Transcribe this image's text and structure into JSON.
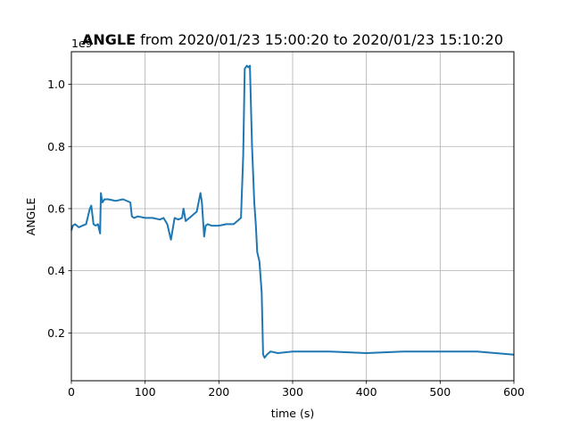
{
  "chart_data": {
    "type": "line",
    "title_bold": "ANGLE",
    "title_rest": " from 2020/01/23 15:00:20 to 2020/01/23 15:10:20",
    "xlabel": "time (s)",
    "ylabel": "ANGLE",
    "y_offset_text": "1e9",
    "xlim": [
      0,
      600
    ],
    "ylim": [
      0.046,
      1.105
    ],
    "x_ticks": [
      0,
      100,
      200,
      300,
      400,
      500,
      600
    ],
    "x_tick_labels": [
      "0",
      "100",
      "200",
      "300",
      "400",
      "500",
      "600"
    ],
    "y_ticks": [
      0.2,
      0.4,
      0.6,
      0.8,
      1.0
    ],
    "y_tick_labels": [
      "0.2",
      "0.4",
      "0.6",
      "0.8",
      "1.0"
    ],
    "grid": true,
    "line_color": "#1f77b4",
    "series": [
      {
        "x": [
          0,
          2,
          5,
          10,
          15,
          20,
          25,
          27,
          30,
          33,
          36,
          39,
          40,
          42,
          45,
          50,
          60,
          70,
          80,
          82,
          85,
          90,
          100,
          110,
          120,
          125,
          130,
          135,
          140,
          145,
          150,
          152,
          155,
          160,
          170,
          175,
          177,
          180,
          182,
          185,
          190,
          200,
          210,
          220,
          225,
          230,
          233,
          235,
          238,
          240,
          242,
          245,
          248,
          250,
          252,
          255,
          258,
          260,
          262,
          265,
          270,
          280,
          300,
          350,
          400,
          450,
          500,
          550,
          600
        ],
        "y": [
          0.53,
          0.545,
          0.55,
          0.54,
          0.545,
          0.55,
          0.6,
          0.61,
          0.55,
          0.545,
          0.55,
          0.52,
          0.65,
          0.62,
          0.63,
          0.63,
          0.625,
          0.63,
          0.62,
          0.575,
          0.57,
          0.575,
          0.57,
          0.57,
          0.565,
          0.57,
          0.55,
          0.5,
          0.57,
          0.565,
          0.57,
          0.6,
          0.56,
          0.57,
          0.59,
          0.65,
          0.62,
          0.51,
          0.545,
          0.55,
          0.545,
          0.545,
          0.55,
          0.55,
          0.56,
          0.57,
          0.77,
          1.05,
          1.06,
          1.055,
          1.06,
          0.8,
          0.62,
          0.55,
          0.46,
          0.43,
          0.33,
          0.13,
          0.12,
          0.13,
          0.14,
          0.135,
          0.14,
          0.14,
          0.135,
          0.14,
          0.14,
          0.14,
          0.13
        ]
      }
    ]
  }
}
